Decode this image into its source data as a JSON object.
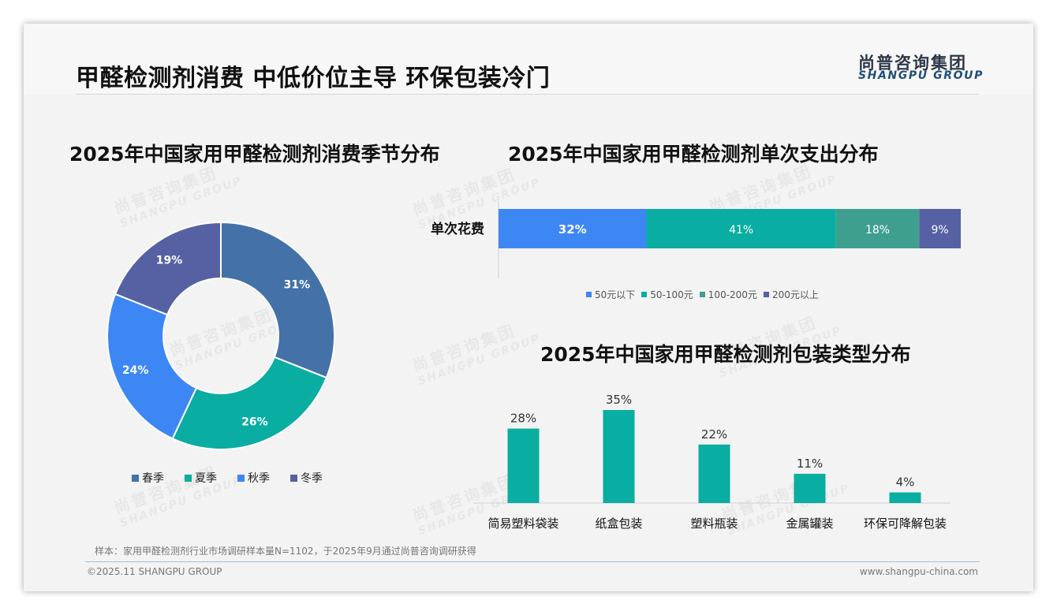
{
  "page": {
    "title": "甲醛检测剂消费 中低价位主导 环保包装冷门",
    "logo_cn": "尚普咨询集团",
    "logo_en": "SHANGPU GROUP",
    "watermark_cn": "尚普咨询集团",
    "watermark_en": "SHANGPU GROUP",
    "note": "样本：家用甲醛检测剂行业市场调研样本量N=1102，于2025年9月通过尚普咨询调研获得",
    "copyright": "©2025.11 SHANGPU GROUP",
    "website": "www.shangpu-china.com"
  },
  "chart_data": [
    {
      "type": "pie",
      "subtype": "donut",
      "title": "2025年中国家用甲醛检测剂消费季节分布",
      "categories": [
        "春季",
        "夏季",
        "秋季",
        "冬季"
      ],
      "values": [
        31,
        26,
        24,
        19
      ],
      "labels": [
        "31%",
        "26%",
        "24%",
        "19%"
      ],
      "colors": [
        "#4472a8",
        "#0aada1",
        "#3d87f5",
        "#5561a3"
      ],
      "legend": "bottom"
    },
    {
      "type": "bar",
      "subtype": "stacked-horizontal-100",
      "title": "2025年中国家用甲醛检测剂单次支出分布",
      "categories": [
        "单次花费"
      ],
      "series": [
        {
          "name": "50元以下",
          "values": [
            32
          ],
          "label": "32%",
          "color": "#3d87f5"
        },
        {
          "name": "50-100元",
          "values": [
            41
          ],
          "label": "41%",
          "color": "#0aada1"
        },
        {
          "name": "100-200元",
          "values": [
            18
          ],
          "label": "18%",
          "color": "#3f9f8f"
        },
        {
          "name": "200元以上",
          "values": [
            9
          ],
          "label": "9%",
          "color": "#5561a3"
        }
      ],
      "legend": "bottom"
    },
    {
      "type": "bar",
      "title": "2025年中国家用甲醛检测剂包装类型分布",
      "categories": [
        "简易塑料袋装",
        "纸盒包装",
        "塑料瓶装",
        "金属罐装",
        "环保可降解包装"
      ],
      "values": [
        28,
        35,
        22,
        11,
        4
      ],
      "labels": [
        "28%",
        "35%",
        "22%",
        "11%",
        "4%"
      ],
      "color": "#0aada1",
      "ylim": [
        0,
        35
      ]
    }
  ]
}
